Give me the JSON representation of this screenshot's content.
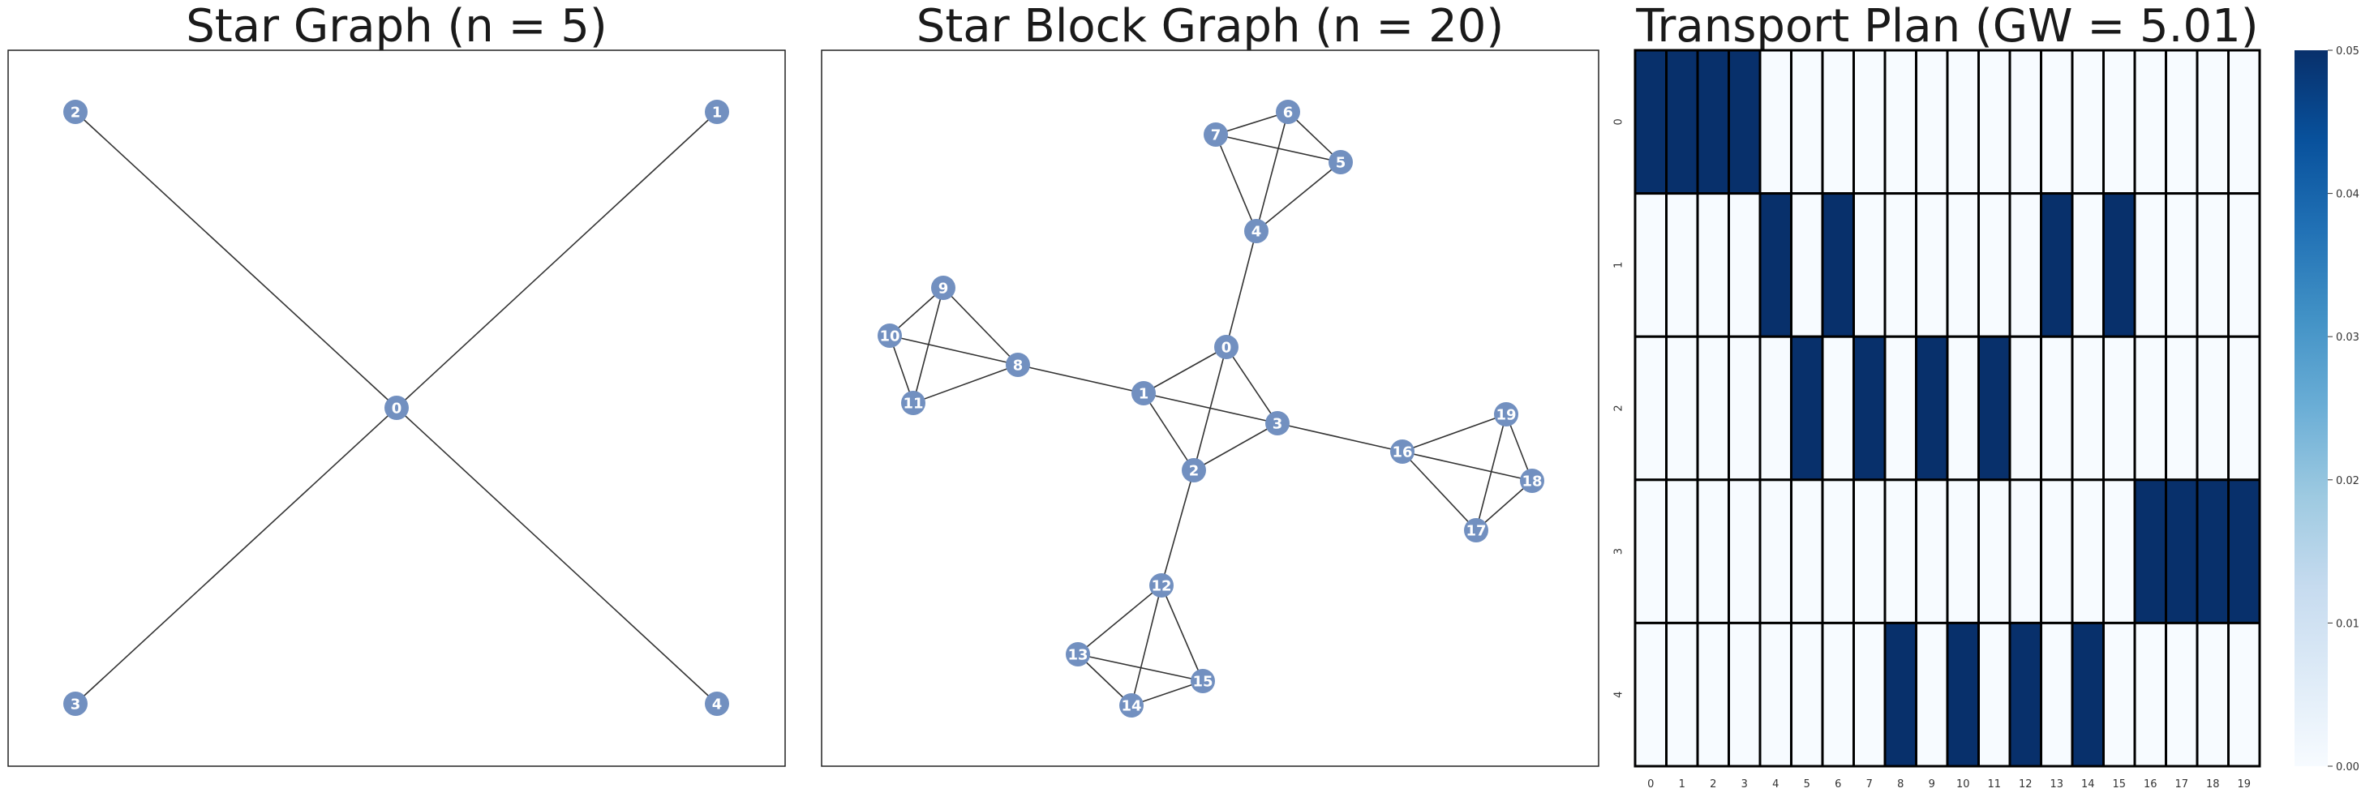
{
  "panels": {
    "star_title": "Star Graph (n = 5)",
    "block_title": "Star Block Graph (n = 20)",
    "heatmap_title": "Transport Plan (GW = 5.01)"
  },
  "style": {
    "node_fill": "#7290c0",
    "node_label_color": "#ffffff",
    "edge_color": "#333333",
    "colormap": "Blues",
    "heat_low": "#f7fbff",
    "heat_high": "#08306b"
  },
  "chart_data": [
    {
      "type": "network",
      "title": "Star Graph (n = 5)",
      "nodes": [
        "0",
        "1",
        "2",
        "3",
        "4"
      ],
      "edges": [
        [
          "0",
          "1"
        ],
        [
          "0",
          "2"
        ],
        [
          "0",
          "3"
        ],
        [
          "0",
          "4"
        ]
      ]
    },
    {
      "type": "network",
      "title": "Star Block Graph (n = 20)",
      "nodes": [
        "0",
        "1",
        "2",
        "3",
        "4",
        "5",
        "6",
        "7",
        "8",
        "9",
        "10",
        "11",
        "12",
        "13",
        "14",
        "15",
        "16",
        "17",
        "18",
        "19"
      ],
      "edges": [
        [
          "0",
          "1"
        ],
        [
          "0",
          "2"
        ],
        [
          "0",
          "3"
        ],
        [
          "1",
          "2"
        ],
        [
          "1",
          "3"
        ],
        [
          "2",
          "3"
        ],
        [
          "0",
          "4"
        ],
        [
          "1",
          "8"
        ],
        [
          "2",
          "12"
        ],
        [
          "3",
          "16"
        ],
        [
          "4",
          "5"
        ],
        [
          "4",
          "6"
        ],
        [
          "4",
          "7"
        ],
        [
          "5",
          "6"
        ],
        [
          "5",
          "7"
        ],
        [
          "6",
          "7"
        ],
        [
          "8",
          "9"
        ],
        [
          "8",
          "10"
        ],
        [
          "8",
          "11"
        ],
        [
          "9",
          "10"
        ],
        [
          "9",
          "11"
        ],
        [
          "10",
          "11"
        ],
        [
          "12",
          "13"
        ],
        [
          "12",
          "14"
        ],
        [
          "12",
          "15"
        ],
        [
          "13",
          "14"
        ],
        [
          "13",
          "15"
        ],
        [
          "14",
          "15"
        ],
        [
          "16",
          "17"
        ],
        [
          "16",
          "18"
        ],
        [
          "16",
          "19"
        ],
        [
          "17",
          "18"
        ],
        [
          "17",
          "19"
        ],
        [
          "18",
          "19"
        ]
      ]
    },
    {
      "type": "heatmap",
      "title": "Transport Plan (GW = 5.01)",
      "row_labels": [
        "0",
        "1",
        "2",
        "3",
        "4"
      ],
      "col_labels": [
        "0",
        "1",
        "2",
        "3",
        "4",
        "5",
        "6",
        "7",
        "8",
        "9",
        "10",
        "11",
        "12",
        "13",
        "14",
        "15",
        "16",
        "17",
        "18",
        "19"
      ],
      "values": [
        [
          0.05,
          0.05,
          0.05,
          0.05,
          0,
          0,
          0,
          0,
          0,
          0,
          0,
          0,
          0,
          0,
          0,
          0,
          0,
          0,
          0,
          0
        ],
        [
          0,
          0,
          0,
          0,
          0.05,
          0,
          0.05,
          0,
          0,
          0,
          0,
          0,
          0,
          0.05,
          0,
          0.05,
          0,
          0,
          0,
          0
        ],
        [
          0,
          0,
          0,
          0,
          0,
          0.05,
          0,
          0.05,
          0,
          0.05,
          0,
          0.05,
          0,
          0,
          0,
          0,
          0,
          0,
          0,
          0
        ],
        [
          0,
          0,
          0,
          0,
          0,
          0,
          0,
          0,
          0,
          0,
          0,
          0,
          0,
          0,
          0,
          0,
          0.05,
          0.05,
          0.05,
          0.05
        ],
        [
          0,
          0,
          0,
          0,
          0,
          0,
          0,
          0,
          0.05,
          0,
          0.05,
          0,
          0.05,
          0,
          0.05,
          0,
          0,
          0,
          0,
          0
        ]
      ],
      "colorbar": {
        "min": 0.0,
        "max": 0.05,
        "ticks": [
          "0.00",
          "0.01",
          "0.02",
          "0.03",
          "0.04",
          "0.05"
        ]
      }
    }
  ]
}
